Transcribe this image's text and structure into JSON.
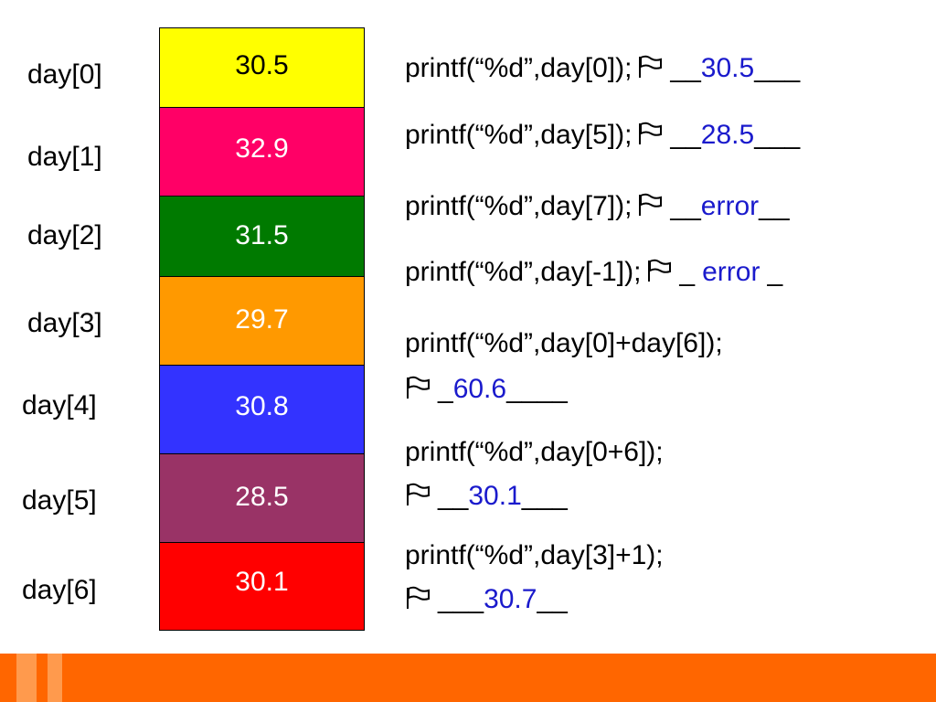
{
  "cells": [
    {
      "label": "day[0]",
      "value": "30.5"
    },
    {
      "label": "day[1]",
      "value": "32.9"
    },
    {
      "label": "day[2]",
      "value": "31.5"
    },
    {
      "label": "day[3]",
      "value": "29.7"
    },
    {
      "label": "day[4]",
      "value": "30.8"
    },
    {
      "label": "day[5]",
      "value": "28.5"
    },
    {
      "label": "day[6]",
      "value": "30.1"
    }
  ],
  "statements": [
    {
      "code": "printf(“%d”,day[0]);",
      "blank_before": "__",
      "answer": "30.5",
      "blank_after": "___"
    },
    {
      "code": "printf(“%d”,day[5]);",
      "blank_before": "__",
      "answer": "28.5",
      "blank_after": "___"
    },
    {
      "code": "printf(“%d”,day[7]);",
      "blank_before": "__",
      "answer": "error",
      "blank_after": "__"
    },
    {
      "code": "printf(“%d”,day[-1]);",
      "blank_before": "_",
      "answer": "error",
      "blank_after": "_"
    },
    {
      "code": "printf(“%d”,day[0]+day[6]);",
      "blank_before": "_",
      "answer": "60.6",
      "blank_after": "____"
    },
    {
      "code": "printf(“%d”,day[0+6]);",
      "blank_before": "__",
      "answer": "30.1",
      "blank_after": "___"
    },
    {
      "code": "printf(“%d”,day[3]+1);",
      "blank_before": "___",
      "answer": "30.7",
      "blank_after": "__"
    }
  ]
}
